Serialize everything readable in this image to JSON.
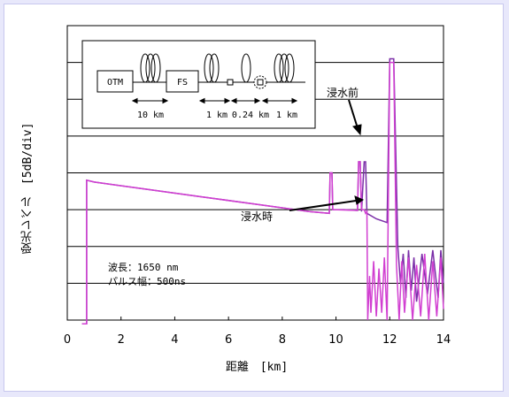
{
  "chart_data": {
    "type": "line",
    "xlabel": "距離　[km]",
    "ylabel": "受光レベル　[5dB/div]",
    "xlim": [
      0,
      14
    ],
    "x_ticks": [
      "0",
      "2",
      "4",
      "6",
      "8",
      "10",
      "12",
      "14"
    ],
    "ylim": [
      0,
      8
    ],
    "y_divisions": 8,
    "grid": true,
    "notes": [
      "波長：1650 nm",
      "パルス幅：500ns"
    ],
    "annotations": [
      {
        "text": "浸水前",
        "x": 10.9,
        "y": 4.4
      },
      {
        "text": "浸水時",
        "x": 11.1,
        "y": 2.8
      }
    ],
    "series": [
      {
        "color": "#7b2fa8",
        "points": [
          [
            0.55,
            -0.3
          ],
          [
            0.72,
            -0.3
          ],
          [
            0.72,
            3.8
          ],
          [
            1.0,
            3.75
          ],
          [
            3.0,
            3.55
          ],
          [
            5.0,
            3.35
          ],
          [
            7.0,
            3.15
          ],
          [
            9.0,
            2.95
          ],
          [
            9.75,
            2.9
          ],
          [
            9.78,
            4.0
          ],
          [
            9.85,
            4.0
          ],
          [
            9.88,
            3.0
          ],
          [
            9.95,
            3.0
          ],
          [
            9.97,
            3.0
          ],
          [
            10.0,
            3.0
          ],
          [
            10.3,
            3.0
          ],
          [
            10.8,
            2.98
          ],
          [
            10.84,
            4.3
          ],
          [
            10.9,
            4.3
          ],
          [
            10.95,
            2.95
          ],
          [
            11.05,
            4.3
          ],
          [
            11.1,
            4.3
          ],
          [
            11.15,
            2.9
          ],
          [
            11.5,
            2.75
          ],
          [
            11.9,
            2.65
          ],
          [
            12.0,
            7.1
          ],
          [
            12.15,
            7.1
          ],
          [
            12.3,
            2.0
          ],
          [
            12.4,
            1.0
          ],
          [
            12.5,
            1.8
          ],
          [
            12.6,
            0.6
          ],
          [
            12.7,
            1.9
          ],
          [
            12.8,
            0.8
          ],
          [
            12.9,
            1.7
          ],
          [
            13.0,
            0.5
          ],
          [
            13.2,
            1.8
          ],
          [
            13.4,
            0.7
          ],
          [
            13.6,
            1.9
          ],
          [
            13.8,
            0.6
          ],
          [
            13.9,
            1.9
          ],
          [
            14.0,
            1.0
          ]
        ]
      },
      {
        "color": "#d13fd1",
        "points": [
          [
            0.55,
            -0.3
          ],
          [
            0.72,
            -0.3
          ],
          [
            0.72,
            3.8
          ],
          [
            1.0,
            3.75
          ],
          [
            3.0,
            3.55
          ],
          [
            5.0,
            3.35
          ],
          [
            7.0,
            3.15
          ],
          [
            9.0,
            2.95
          ],
          [
            9.75,
            2.9
          ],
          [
            9.78,
            4.0
          ],
          [
            9.85,
            4.0
          ],
          [
            9.88,
            3.0
          ],
          [
            10.8,
            2.98
          ],
          [
            10.84,
            4.3
          ],
          [
            10.9,
            4.3
          ],
          [
            10.95,
            3.0
          ],
          [
            11.05,
            3.0
          ],
          [
            11.1,
            2.9
          ],
          [
            11.15,
            2.95
          ],
          [
            11.18,
            0.0
          ],
          [
            11.25,
            1.2
          ],
          [
            11.3,
            0.2
          ],
          [
            11.4,
            1.6
          ],
          [
            11.5,
            0.1
          ],
          [
            11.6,
            1.4
          ],
          [
            11.7,
            0.2
          ],
          [
            11.8,
            1.7
          ],
          [
            11.9,
            0.0
          ],
          [
            12.0,
            7.0
          ],
          [
            12.15,
            7.0
          ],
          [
            12.25,
            1.5
          ],
          [
            12.35,
            0.0
          ],
          [
            12.45,
            1.6
          ],
          [
            12.55,
            0.2
          ],
          [
            12.7,
            1.7
          ],
          [
            12.85,
            0.0
          ],
          [
            13.0,
            1.5
          ],
          [
            13.15,
            0.1
          ],
          [
            13.3,
            1.8
          ],
          [
            13.45,
            0.0
          ],
          [
            13.6,
            1.6
          ],
          [
            13.75,
            0.1
          ],
          [
            13.9,
            1.7
          ],
          [
            14.0,
            0.3
          ]
        ]
      }
    ]
  },
  "inset": {
    "otm_label": "OTM",
    "fs_label": "FS",
    "dim_10km": "10 km",
    "dim_1km_a": "1 km",
    "dim_024km": "0.24 km",
    "dim_1km_b": "1 km"
  }
}
